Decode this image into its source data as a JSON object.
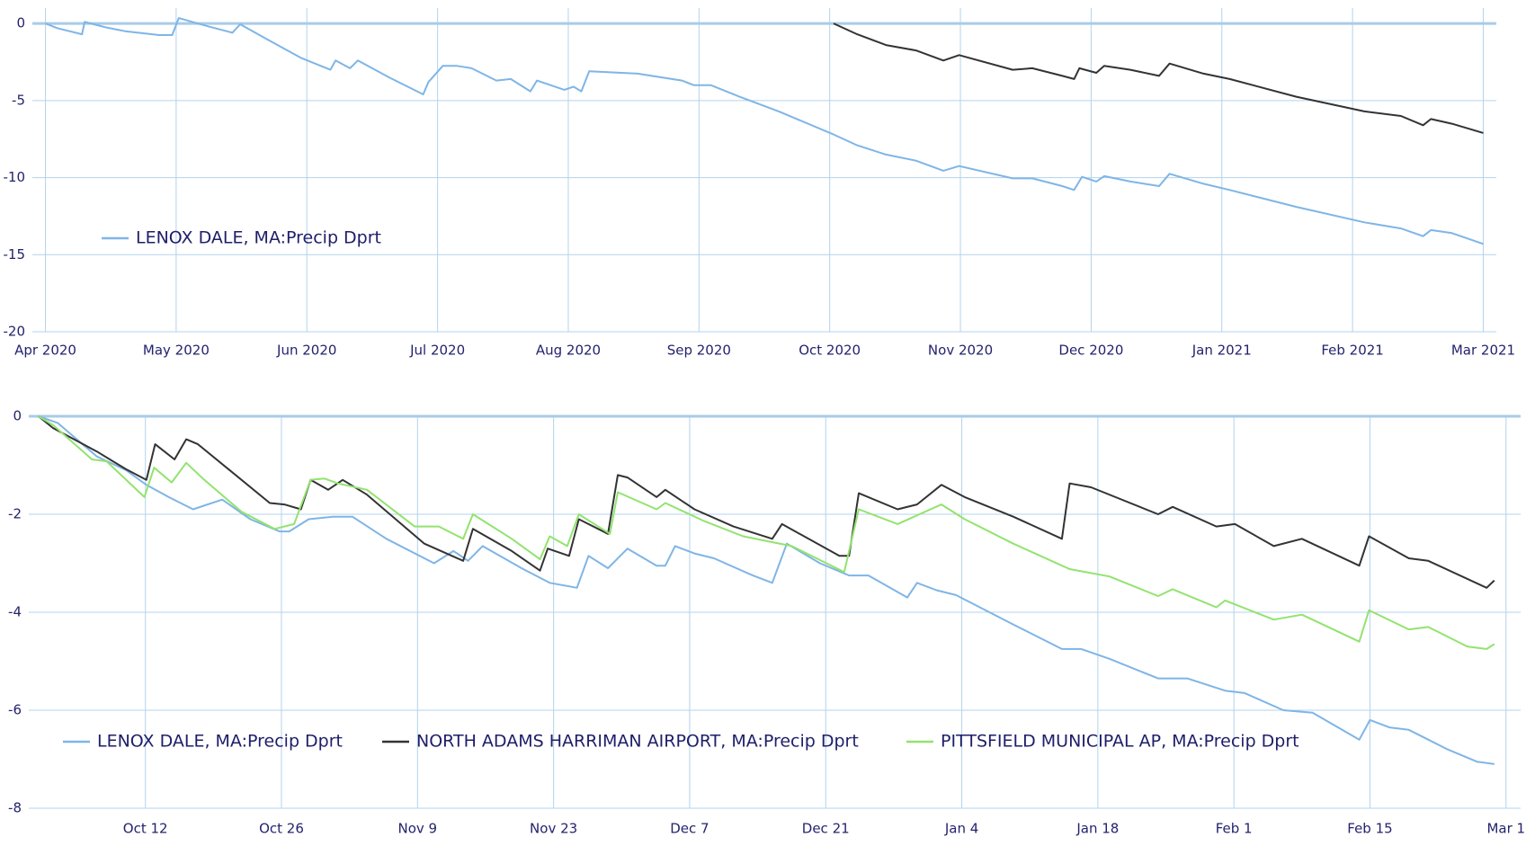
{
  "chart_data": [
    {
      "type": "line",
      "xlim": [
        -0.1,
        11.1
      ],
      "xticks": [
        {
          "value": 0,
          "label": "Apr 2020"
        },
        {
          "value": 1,
          "label": "May 2020"
        },
        {
          "value": 2,
          "label": "Jun 2020"
        },
        {
          "value": 3,
          "label": "Jul 2020"
        },
        {
          "value": 4,
          "label": "Aug 2020"
        },
        {
          "value": 5,
          "label": "Sep 2020"
        },
        {
          "value": 6,
          "label": "Oct 2020"
        },
        {
          "value": 7,
          "label": "Nov 2020"
        },
        {
          "value": 8,
          "label": "Dec 2020"
        },
        {
          "value": 9,
          "label": "Jan 2021"
        },
        {
          "value": 10,
          "label": "Feb 2021"
        },
        {
          "value": 11,
          "label": "Mar 2021"
        }
      ],
      "ylim": [
        -20,
        1
      ],
      "yticks": [
        0,
        -5,
        -10,
        -15,
        -20
      ],
      "grid": true,
      "legend": "lower left",
      "series": [
        {
          "name": "LENOX DALE, MA:Precip Dprt",
          "color": "#7fb5e6",
          "x": [
            0,
            0.09,
            0.28,
            0.3,
            0.46,
            0.61,
            0.87,
            0.97,
            1.02,
            1.21,
            1.43,
            1.49,
            1.69,
            1.96,
            2.18,
            2.22,
            2.33,
            2.39,
            2.63,
            2.89,
            2.93,
            3.04,
            3.15,
            3.26,
            3.45,
            3.56,
            3.71,
            3.76,
            3.97,
            4.04,
            4.1,
            4.16,
            4.53,
            4.87,
            4.96,
            5.09,
            5.31,
            5.61,
            6.03,
            6.21,
            6.43,
            6.66,
            6.87,
            6.99,
            7.4,
            7.55,
            7.78,
            7.87,
            7.93,
            8.04,
            8.1,
            8.3,
            8.52,
            8.6,
            8.86,
            9.06,
            9.57,
            10.09,
            10.37,
            10.54,
            10.6,
            10.76,
            11.0
          ],
          "values": [
            0,
            -0.3,
            -0.7,
            0.1,
            -0.25,
            -0.5,
            -0.75,
            -0.75,
            0.35,
            -0.1,
            -0.6,
            -0.05,
            -1.0,
            -2.25,
            -3.0,
            -2.4,
            -2.9,
            -2.4,
            -3.5,
            -4.6,
            -3.8,
            -2.75,
            -2.75,
            -2.9,
            -3.7,
            -3.6,
            -4.4,
            -3.7,
            -4.3,
            -4.1,
            -4.4,
            -3.1,
            -3.25,
            -3.7,
            -4.0,
            -4.0,
            -4.75,
            -5.7,
            -7.2,
            -7.9,
            -8.5,
            -8.9,
            -9.55,
            -9.25,
            -10.05,
            -10.05,
            -10.55,
            -10.8,
            -9.95,
            -10.25,
            -9.9,
            -10.25,
            -10.55,
            -9.75,
            -10.4,
            -10.8,
            -11.9,
            -12.9,
            -13.3,
            -13.8,
            -13.4,
            -13.6,
            -14.3
          ]
        },
        {
          "name": null,
          "color": "#333333",
          "x": [
            6.03,
            6.21,
            6.43,
            6.66,
            6.87,
            6.99,
            7.4,
            7.55,
            7.78,
            7.87,
            7.91,
            8.04,
            8.1,
            8.3,
            8.52,
            8.6,
            8.86,
            9.06,
            9.57,
            10.09,
            10.37,
            10.54,
            10.6,
            10.76,
            11.0
          ],
          "values": [
            0,
            -0.7,
            -1.4,
            -1.75,
            -2.4,
            -2.05,
            -3.0,
            -2.9,
            -3.4,
            -3.6,
            -2.9,
            -3.2,
            -2.75,
            -3.0,
            -3.4,
            -2.6,
            -3.25,
            -3.6,
            -4.75,
            -5.7,
            -6.0,
            -6.6,
            -6.2,
            -6.5,
            -7.1
          ]
        }
      ]
    },
    {
      "type": "line",
      "xlim": [
        -1,
        152.5
      ],
      "xticks": [
        {
          "value": 11,
          "label": "Oct 12"
        },
        {
          "value": 25,
          "label": "Oct 26"
        },
        {
          "value": 39,
          "label": "Nov 9"
        },
        {
          "value": 53,
          "label": "Nov 23"
        },
        {
          "value": 67,
          "label": "Dec 7"
        },
        {
          "value": 81,
          "label": "Dec 21"
        },
        {
          "value": 95,
          "label": "Jan 4"
        },
        {
          "value": 109,
          "label": "Jan 18"
        },
        {
          "value": 123,
          "label": "Feb 1"
        },
        {
          "value": 137,
          "label": "Feb 15"
        },
        {
          "value": 151,
          "label": "Mar 1"
        }
      ],
      "ylim": [
        -8,
        0
      ],
      "yticks": [
        0,
        -2,
        -4,
        -6,
        -8
      ],
      "grid": true,
      "legend": "lower left",
      "series": [
        {
          "name": "LENOX DALE, MA:Precip Dprt",
          "color": "#7fb5e6",
          "x": [
            0,
            2,
            6,
            9,
            11.1,
            13.4,
            15.9,
            18.9,
            21.8,
            24.8,
            25.8,
            27.8,
            30.3,
            32.3,
            35.8,
            40.7,
            42.7,
            44.2,
            45.7,
            49.7,
            52.6,
            55.4,
            56.6,
            58.6,
            60.6,
            63.6,
            64.5,
            65.5,
            67.5,
            69.5,
            73.5,
            75.5,
            77,
            80.4,
            83.4,
            85.4,
            89.4,
            90.4,
            92.4,
            94.4,
            100.3,
            105.3,
            107.3,
            110.2,
            115.2,
            118.2,
            122.1,
            124.1,
            128.1,
            131.1,
            135.9,
            137,
            139,
            141,
            143,
            145,
            148,
            149.8
          ],
          "values": [
            0,
            -0.14,
            -0.82,
            -1.1,
            -1.4,
            -1.65,
            -1.9,
            -1.7,
            -2.1,
            -2.35,
            -2.35,
            -2.1,
            -2.05,
            -2.05,
            -2.5,
            -3.0,
            -2.75,
            -2.95,
            -2.65,
            -3.1,
            -3.4,
            -3.5,
            -2.85,
            -3.1,
            -2.7,
            -3.05,
            -3.05,
            -2.65,
            -2.8,
            -2.9,
            -3.25,
            -3.4,
            -2.6,
            -3.0,
            -3.25,
            -3.25,
            -3.7,
            -3.4,
            -3.55,
            -3.65,
            -4.25,
            -4.75,
            -4.75,
            -4.95,
            -5.35,
            -5.35,
            -5.6,
            -5.65,
            -6.0,
            -6.05,
            -6.6,
            -6.2,
            -6.35,
            -6.4,
            -6.6,
            -6.8,
            -7.05,
            -7.1
          ]
        },
        {
          "name": "NORTH ADAMS HARRIMAN AIRPORT, MA:Precip Dprt",
          "color": "#333333",
          "x": [
            0,
            1.5,
            6,
            9,
            11.1,
            12,
            14,
            15.2,
            16.4,
            23.8,
            25.3,
            27,
            28,
            29.8,
            31.3,
            33.8,
            39.7,
            43.7,
            44.7,
            48.7,
            51.6,
            52.4,
            54.6,
            55.6,
            58.6,
            59.6,
            60.6,
            63.6,
            64.5,
            67.5,
            71.5,
            75.5,
            76.5,
            82.4,
            83.4,
            84.4,
            88.4,
            90.4,
            92.9,
            95.3,
            100.3,
            105.3,
            106.1,
            108.3,
            115.2,
            116.7,
            121.2,
            123.1,
            127.1,
            130,
            135.9,
            136.9,
            141,
            143,
            149,
            149.8
          ],
          "values": [
            0,
            -0.24,
            -0.72,
            -1.08,
            -1.3,
            -0.57,
            -0.88,
            -0.47,
            -0.57,
            -1.77,
            -1.8,
            -1.9,
            -1.3,
            -1.5,
            -1.3,
            -1.6,
            -2.6,
            -2.95,
            -2.3,
            -2.75,
            -3.15,
            -2.7,
            -2.85,
            -2.1,
            -2.4,
            -1.2,
            -1.25,
            -1.65,
            -1.5,
            -1.9,
            -2.25,
            -2.5,
            -2.2,
            -2.85,
            -2.85,
            -1.57,
            -1.9,
            -1.8,
            -1.4,
            -1.65,
            -2.05,
            -2.5,
            -1.37,
            -1.45,
            -2.0,
            -1.85,
            -2.25,
            -2.2,
            -2.65,
            -2.5,
            -3.05,
            -2.45,
            -2.9,
            -2.95,
            -3.5,
            -3.35
          ]
        },
        {
          "name": "PITTSFIELD MUNICIPAL AP, MA:Precip Dprt",
          "color": "#92e36f",
          "x": [
            0,
            1.5,
            5.5,
            7,
            10.9,
            11.9,
            13.7,
            15.2,
            16.9,
            20.9,
            24.3,
            26.3,
            28,
            29.4,
            30.8,
            33.8,
            38.7,
            41.2,
            43.7,
            44.7,
            48.7,
            51.6,
            52.6,
            54.4,
            55.6,
            58.8,
            59.6,
            63.6,
            64.5,
            68.5,
            72.5,
            77.5,
            82.9,
            84.4,
            88.4,
            92.9,
            95.3,
            100.3,
            106.1,
            110.2,
            115.2,
            116.7,
            121.2,
            122.1,
            127.1,
            130,
            135.9,
            136.9,
            141,
            143,
            147,
            149,
            149.8
          ],
          "values": [
            0,
            -0.18,
            -0.88,
            -0.92,
            -1.65,
            -1.05,
            -1.35,
            -0.95,
            -1.27,
            -1.95,
            -2.3,
            -2.2,
            -1.3,
            -1.27,
            -1.37,
            -1.5,
            -2.25,
            -2.25,
            -2.5,
            -2.0,
            -2.5,
            -2.92,
            -2.45,
            -2.65,
            -2.0,
            -2.4,
            -1.55,
            -1.9,
            -1.77,
            -2.14,
            -2.45,
            -2.65,
            -3.18,
            -1.9,
            -2.2,
            -1.8,
            -2.1,
            -2.6,
            -3.12,
            -3.27,
            -3.67,
            -3.53,
            -3.9,
            -3.76,
            -4.15,
            -4.05,
            -4.6,
            -3.96,
            -4.35,
            -4.3,
            -4.7,
            -4.75,
            -4.65
          ]
        }
      ]
    }
  ]
}
